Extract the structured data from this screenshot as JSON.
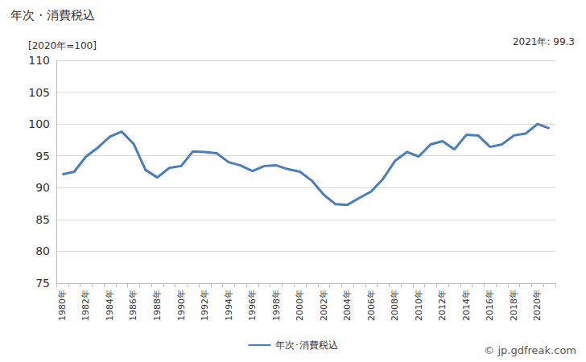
{
  "chart_data": {
    "type": "line",
    "title": "年次・消費税込",
    "ylabel": "[2020年=100]",
    "annotations": [
      "2021年: 99.3",
      "© jp.gdfreak.com"
    ],
    "categories": [
      "1980年",
      null,
      "1982年",
      null,
      "1984年",
      null,
      "1986年",
      null,
      "1988年",
      null,
      "1990年",
      null,
      "1992年",
      null,
      "1994年",
      null,
      "1996年",
      null,
      "1998年",
      null,
      "2000年",
      null,
      "2002年",
      null,
      "2004年",
      null,
      "2006年",
      null,
      "2008年",
      null,
      "2010年",
      null,
      "2012年",
      null,
      "2014年",
      null,
      "2016年",
      null,
      "2018年",
      null,
      "2020年",
      null
    ],
    "series": [
      {
        "name": "年次･消費税込",
        "color": "#4a7ebb",
        "values": [
          92.1,
          92.5,
          94.9,
          96.3,
          98.0,
          98.8,
          96.9,
          92.8,
          91.6,
          93.1,
          93.4,
          95.7,
          95.6,
          95.4,
          94.0,
          93.5,
          92.6,
          93.4,
          93.5,
          92.9,
          92.5,
          91.1,
          88.9,
          87.4,
          87.3,
          88.4,
          89.4,
          91.4,
          94.2,
          95.6,
          94.9,
          96.8,
          97.3,
          96.0,
          98.3,
          98.2,
          96.4,
          96.8,
          98.2,
          98.5,
          100.0,
          99.3
        ]
      }
    ],
    "ylim": [
      75,
      110
    ],
    "yticks": [
      75,
      80,
      85,
      90,
      95,
      100,
      105,
      110
    ],
    "grid": true,
    "legend": "bottom"
  }
}
